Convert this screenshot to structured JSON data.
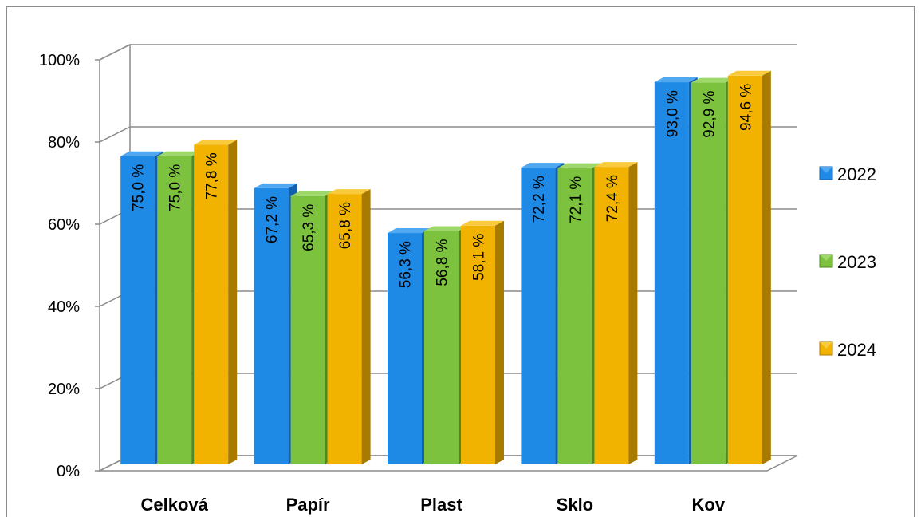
{
  "chart_data": {
    "type": "bar",
    "title": "",
    "xlabel": "",
    "ylabel": "",
    "categories": [
      "Celková",
      "Papír",
      "Plast",
      "Sklo",
      "Kov"
    ],
    "series": [
      {
        "name": "2022",
        "values": [
          75.0,
          67.2,
          56.3,
          72.2,
          93.0
        ],
        "labels": [
          "75,0 %",
          "67,2 %",
          "56,3 %",
          "72,2 %",
          "93,0 %"
        ],
        "color": "#1e8ae6",
        "side": "#1160b0",
        "top": "#4fa8f0"
      },
      {
        "name": "2023",
        "values": [
          75.0,
          65.3,
          56.8,
          72.1,
          92.9
        ],
        "labels": [
          "75,0 %",
          "65,3 %",
          "56,8 %",
          "72,1 %",
          "92,9 %"
        ],
        "color": "#7cc23e",
        "side": "#4f8a1f",
        "top": "#9fd86a"
      },
      {
        "name": "2024",
        "values": [
          77.8,
          65.8,
          58.1,
          72.4,
          94.6
        ],
        "labels": [
          "77,8 %",
          "65,8 %",
          "58,1 %",
          "72,4 %",
          "94,6 %"
        ],
        "color": "#f2b300",
        "side": "#a97a00",
        "top": "#f9cb3c"
      }
    ],
    "ylim": [
      0,
      100
    ],
    "yticks": [
      "0%",
      "20%",
      "40%",
      "60%",
      "80%",
      "100%"
    ],
    "grid": true,
    "legend": "right",
    "orientation": "vertical-3d"
  }
}
